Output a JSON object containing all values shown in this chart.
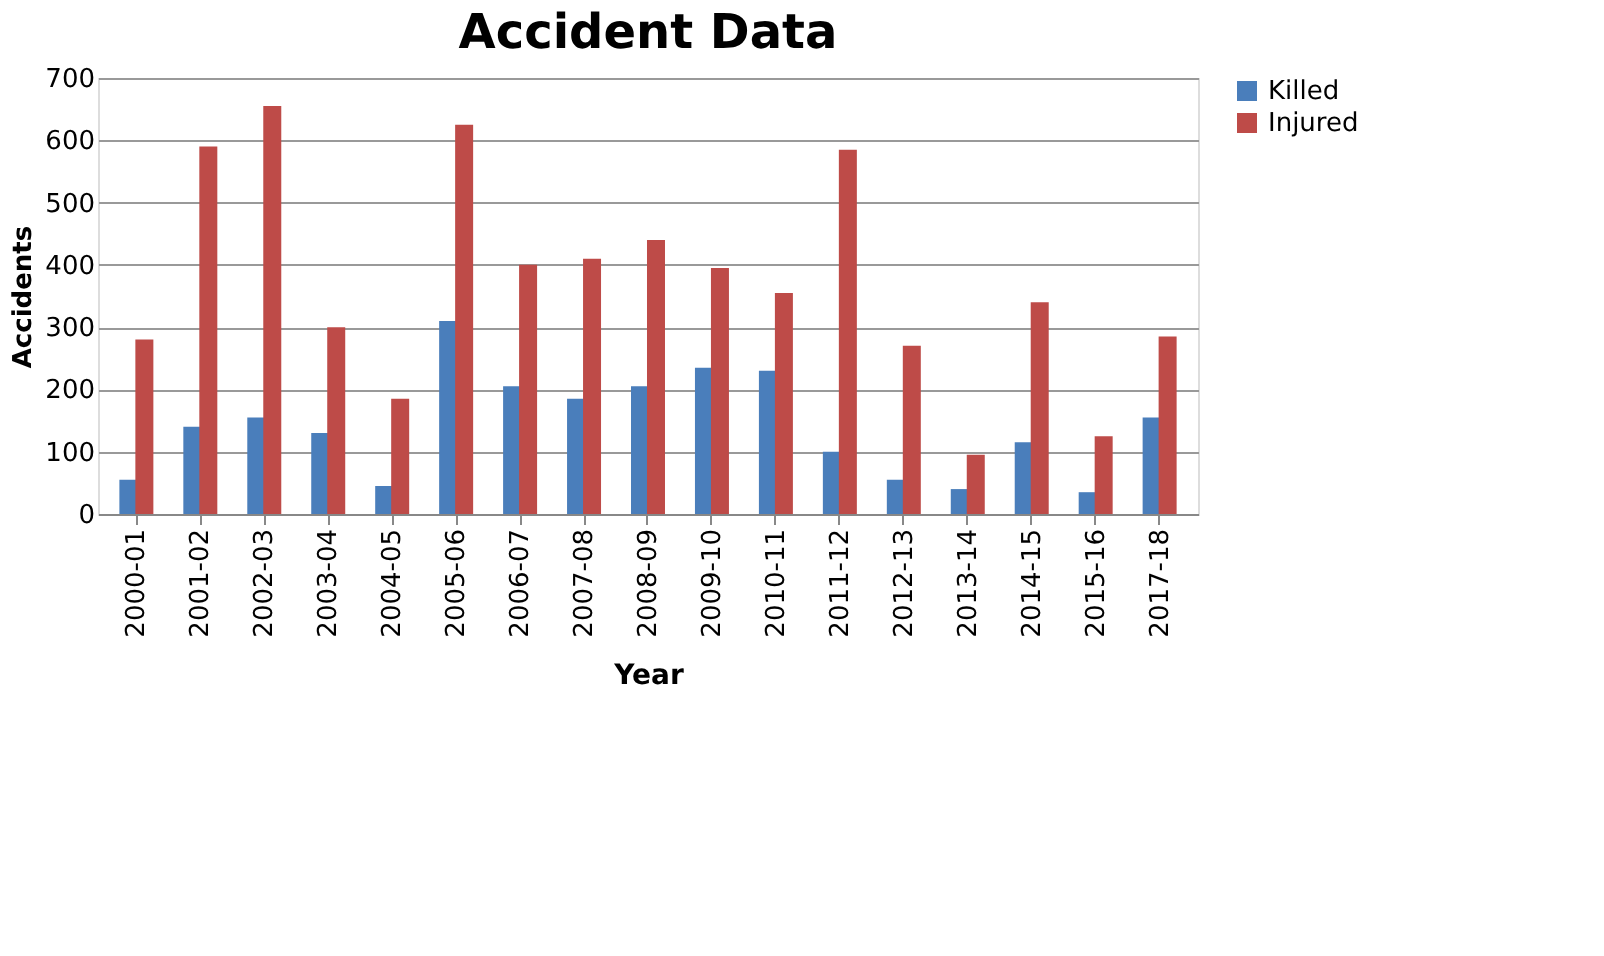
{
  "chart_data": {
    "type": "bar",
    "title": "Accident Data",
    "xlabel": "Year",
    "ylabel": "Accidents",
    "categories": [
      "2000-01",
      "2001-02",
      "2002-03",
      "2003-04",
      "2004-05",
      "2005-06",
      "2006-07",
      "2007-08",
      "2008-09",
      "2009-10",
      "2010-11",
      "2011-12",
      "2012-13",
      "2013-14",
      "2014-15",
      "2015-16",
      "2017-18"
    ],
    "series": [
      {
        "name": "Killed",
        "color": "#4a7ebb",
        "values": [
          55,
          140,
          155,
          130,
          45,
          310,
          205,
          185,
          205,
          235,
          230,
          100,
          55,
          40,
          115,
          35,
          155
        ]
      },
      {
        "name": "Injured",
        "color": "#be4b48",
        "values": [
          280,
          590,
          655,
          300,
          185,
          625,
          400,
          410,
          440,
          395,
          355,
          585,
          270,
          95,
          340,
          125,
          285
        ]
      }
    ],
    "ylim": [
      0,
      700
    ],
    "yticks": [
      0,
      100,
      200,
      300,
      400,
      500,
      600,
      700
    ],
    "grid": "y",
    "legend": "right"
  }
}
